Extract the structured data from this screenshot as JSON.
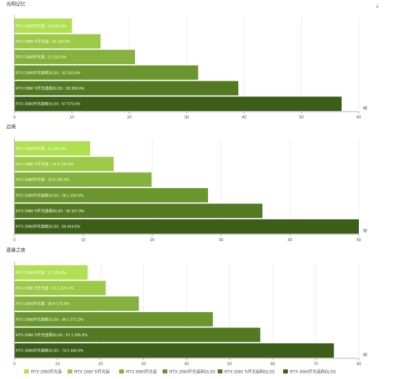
{
  "download_icon": "download-icon",
  "legend": [
    {
      "label": "RTX 2080开光追",
      "color": "#b0e052"
    },
    {
      "label": "RTX 2080 Ti开光追",
      "color": "#9cca48"
    },
    {
      "label": "RTX 3080开光追",
      "color": "#85b23e"
    },
    {
      "label": "RTX 2080开光追和DLSS",
      "color": "#6b962f"
    },
    {
      "label": "RTX 2080 Ti开光追和DLSS",
      "color": "#537a23"
    },
    {
      "label": "RTX 3080开光追和DLSS",
      "color": "#3d5e19"
    }
  ],
  "chart_data": [
    {
      "type": "bar",
      "orientation": "horizontal",
      "title": "光明记忆",
      "unit": "帧",
      "xlim": [
        0,
        60
      ],
      "xticks": [
        0,
        10,
        20,
        30,
        40,
        50,
        60
      ],
      "categories": [
        "RTX 2080开光追",
        "RTX 2080 Ti开光追",
        "RTX 3080开光追",
        "RTX 2080开光追和DLSS",
        "RTX 2080 Ti开光追和DLSS",
        "RTX 3080开光追和DLSS"
      ],
      "values": [
        10,
        15,
        21,
        32,
        39,
        57
      ],
      "percents": [
        "100.0%",
        "150.0%",
        "210.0%",
        "320.0%",
        "390.0%",
        "570.0%"
      ]
    },
    {
      "type": "bar",
      "orientation": "horizontal",
      "title": "边境",
      "unit": "帧",
      "xlim": [
        0,
        50
      ],
      "xticks": [
        0,
        10,
        20,
        30,
        40,
        50
      ],
      "categories": [
        "RTX 2080开光追",
        "RTX 2080 Ti开光追",
        "RTX 3080开光追",
        "RTX 2080开光追和DLSS",
        "RTX 2080 Ti开光追和DLSS",
        "RTX 3080开光追和DLSS"
      ],
      "values": [
        11,
        14.4,
        19.9,
        28.1,
        36,
        50
      ],
      "percents": [
        "100.0%",
        "130.9%",
        "180.9%",
        "255.5%",
        "327.3%",
        "454.5%"
      ]
    },
    {
      "type": "bar",
      "orientation": "horizontal",
      "title": "遗悬之夜",
      "unit": "帧",
      "xlim": [
        0,
        80
      ],
      "xticks": [
        0,
        10,
        20,
        30,
        40,
        50,
        60,
        70,
        80
      ],
      "categories": [
        "RTX 2080开光追",
        "RTX 2080 Ti开光追",
        "RTX 3080开光追",
        "RTX 2080开光追和DLSS",
        "RTX 2080 Ti开光追和DLSS",
        "RTX 3080开光追和DLSS"
      ],
      "values": [
        17,
        21.2,
        28.9,
        46.1,
        57.1,
        74.2
      ],
      "percents": [
        "100.0%",
        "124.7%",
        "170.0%",
        "271.2%",
        "335.9%",
        "436.5%"
      ]
    }
  ]
}
